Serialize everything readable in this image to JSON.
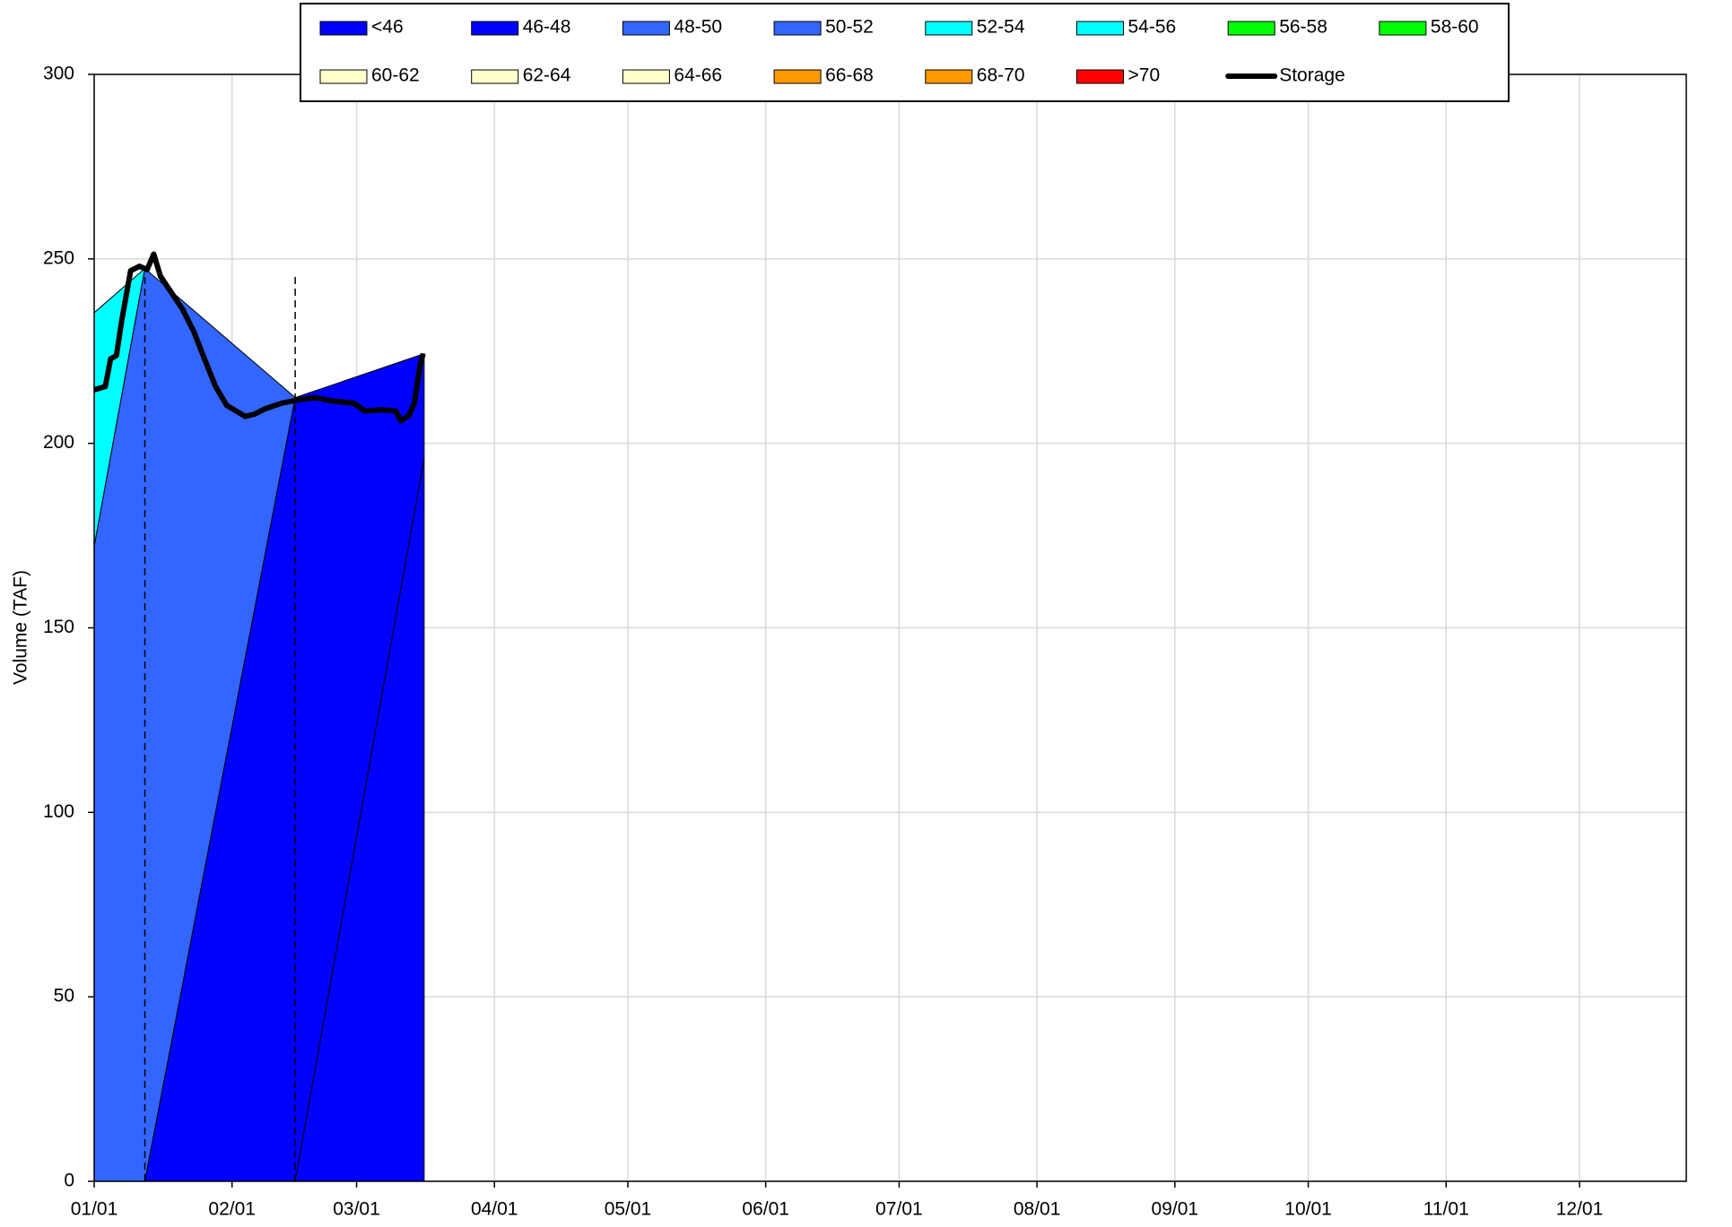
{
  "chart_data": {
    "type": "area",
    "y_label": "Volume (TAF)",
    "xlim": [
      0,
      358
    ],
    "ylim": [
      0,
      300
    ],
    "yticks": [
      0,
      50,
      100,
      150,
      200,
      250,
      300
    ],
    "xticks": [
      {
        "value": 0,
        "label": "01/01"
      },
      {
        "value": 31,
        "label": "02/01"
      },
      {
        "value": 59,
        "label": "03/01"
      },
      {
        "value": 90,
        "label": "04/01"
      },
      {
        "value": 120,
        "label": "05/01"
      },
      {
        "value": 151,
        "label": "06/01"
      },
      {
        "value": 181,
        "label": "07/01"
      },
      {
        "value": 212,
        "label": "08/01"
      },
      {
        "value": 243,
        "label": "09/01"
      },
      {
        "value": 273,
        "label": "10/01"
      },
      {
        "value": 304,
        "label": "11/01"
      },
      {
        "value": 334,
        "label": "12/01"
      }
    ],
    "grid": true,
    "legend": [
      {
        "name": "<46",
        "color": "#0000ff"
      },
      {
        "name": "46-48",
        "color": "#0000ff"
      },
      {
        "name": "48-50",
        "color": "#3366ff"
      },
      {
        "name": "50-52",
        "color": "#3366ff"
      },
      {
        "name": "52-54",
        "color": "#00ffff"
      },
      {
        "name": "54-56",
        "color": "#00ffff"
      },
      {
        "name": "56-58",
        "color": "#00ff00"
      },
      {
        "name": "58-60",
        "color": "#00ff00"
      },
      {
        "name": "60-62",
        "color": "#ffffcc"
      },
      {
        "name": "62-64",
        "color": "#ffffcc"
      },
      {
        "name": "64-66",
        "color": "#ffffcc"
      },
      {
        "name": "66-68",
        "color": "#ff9900"
      },
      {
        "name": "68-70",
        "color": "#ff9900"
      },
      {
        "name": ">70",
        "color": "#ff0000"
      }
    ],
    "areas": [
      {
        "color": "#00ffff",
        "x": [
          0,
          11.4,
          0
        ],
        "y": [
          235.4,
          247.4,
          172
        ]
      },
      {
        "color": "#3366ff",
        "x": [
          0,
          11.4,
          45.2,
          11.4,
          0
        ],
        "y": [
          172,
          247.4,
          212.4,
          0,
          0
        ]
      },
      {
        "color": "#0000ff",
        "x": [
          11.4,
          45.2,
          74.2,
          74.2,
          45.2
        ],
        "y": [
          0,
          212.4,
          224.3,
          195.9,
          0
        ]
      },
      {
        "color": "#0000ff",
        "x": [
          45.2,
          74.2,
          74.2
        ],
        "y": [
          0,
          195.9,
          0
        ]
      }
    ],
    "dividers": [
      11.4,
      45.2
    ],
    "series": [
      {
        "name": "Storage",
        "color": "#000000",
        "x": [
          0,
          2.5,
          3.7,
          5.0,
          6.2,
          8.2,
          10.2,
          11.9,
          13.4,
          14.9,
          17.4,
          19.9,
          22.4,
          24.8,
          27.3,
          29.8,
          32.3,
          34.0,
          36.0,
          38.5,
          42.2,
          45.9,
          49.7,
          53.4,
          58.4,
          60.8,
          64.6,
          67.8,
          69.0,
          70.8,
          72.0,
          73.3,
          74.0
        ],
        "values": [
          214.5,
          215.4,
          222.9,
          223.8,
          233.3,
          246.8,
          248.0,
          247.1,
          251.3,
          245.3,
          240.8,
          236.3,
          230.3,
          222.9,
          215.4,
          210.3,
          208.5,
          207.3,
          207.9,
          209.4,
          210.9,
          211.8,
          212.4,
          211.5,
          210.9,
          208.8,
          209.1,
          208.8,
          206.1,
          207.6,
          210.9,
          221.4,
          224.3
        ]
      }
    ]
  }
}
